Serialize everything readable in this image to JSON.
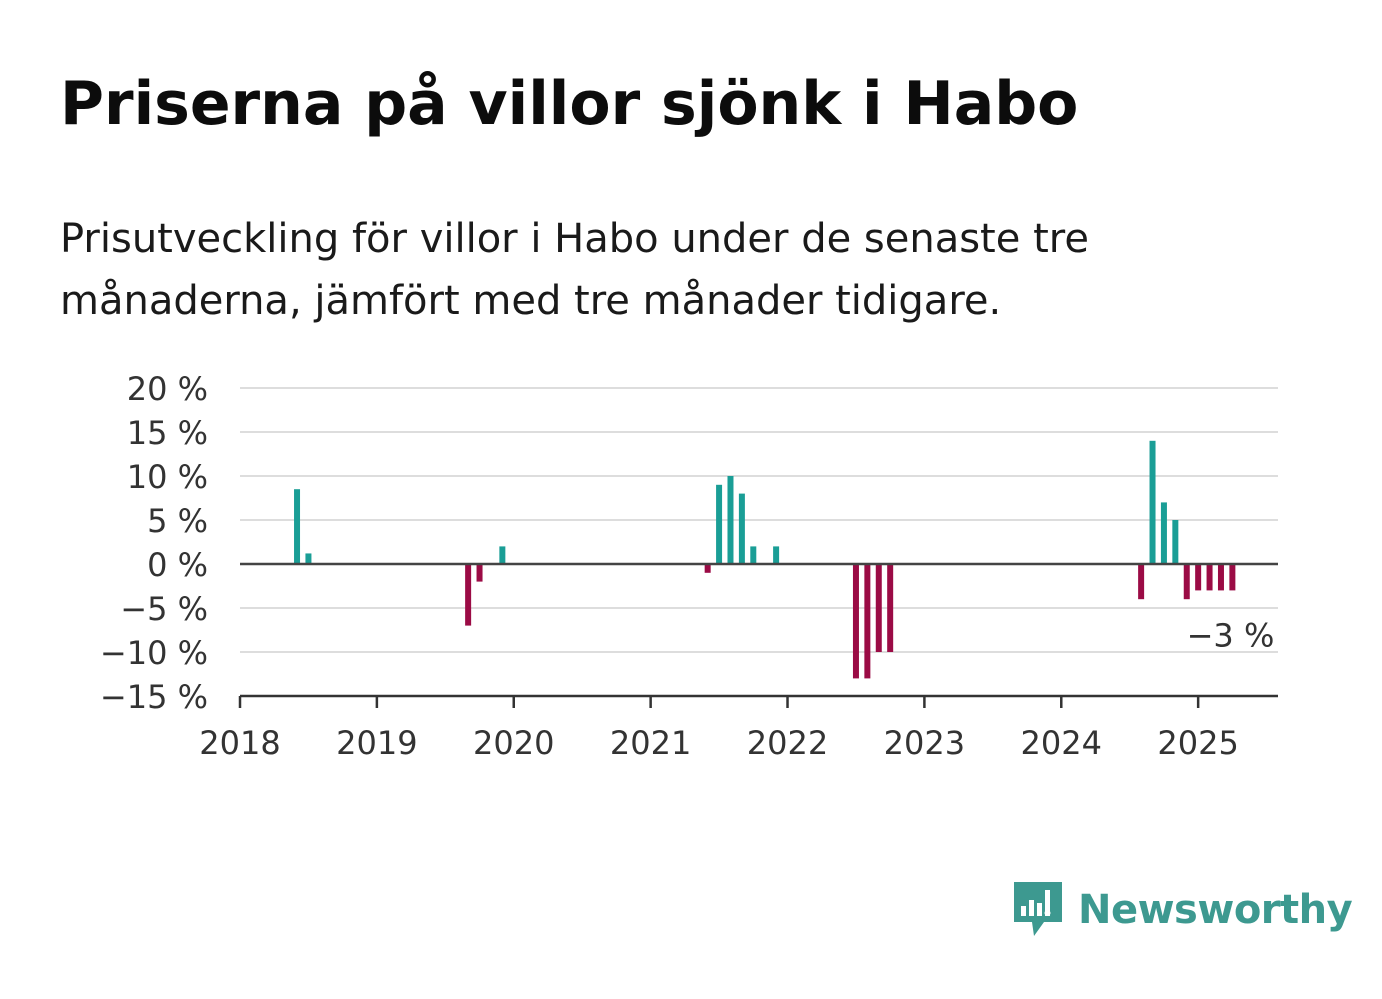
{
  "title": "Priserna på villor sjönk i Habo",
  "subtitle": "Prisutveckling för villor i Habo under de senaste tre månaderna, jämfört med tre månader tidigare.",
  "brand": {
    "name": "Newsworthy",
    "color": "#3d9990"
  },
  "colors": {
    "positive": "#1a9e96",
    "negative": "#9b0b45",
    "grid": "#dddddd",
    "axis": "#333333"
  },
  "chart_data": {
    "type": "bar",
    "title": "Priserna på villor sjönk i Habo",
    "subtitle": "Prisutveckling för villor i Habo under de senaste tre månaderna, jämfört med tre månader tidigare.",
    "xlabel": "",
    "ylabel": "",
    "ylim": [
      -15,
      20
    ],
    "xlim": [
      "2018-01",
      "2025-08"
    ],
    "grid": true,
    "legend": "none",
    "yticks": [
      {
        "value": 20,
        "label": "20 %"
      },
      {
        "value": 15,
        "label": "15 %"
      },
      {
        "value": 10,
        "label": "10 %"
      },
      {
        "value": 5,
        "label": "5 %"
      },
      {
        "value": 0,
        "label": "0 %"
      },
      {
        "value": -5,
        "label": "−5 %"
      },
      {
        "value": -10,
        "label": "−10 %"
      },
      {
        "value": -15,
        "label": "−15 %"
      }
    ],
    "xticks": [
      {
        "value": "2018-01",
        "label": "2018"
      },
      {
        "value": "2019-01",
        "label": "2019"
      },
      {
        "value": "2020-01",
        "label": "2020"
      },
      {
        "value": "2021-01",
        "label": "2021"
      },
      {
        "value": "2022-01",
        "label": "2022"
      },
      {
        "value": "2023-01",
        "label": "2023"
      },
      {
        "value": "2024-01",
        "label": "2024"
      },
      {
        "value": "2025-01",
        "label": "2025"
      }
    ],
    "points": [
      {
        "x": "2018-06",
        "y": 8.5
      },
      {
        "x": "2018-07",
        "y": 1.2
      },
      {
        "x": "2019-09",
        "y": -7
      },
      {
        "x": "2019-10",
        "y": -2
      },
      {
        "x": "2019-12",
        "y": 2
      },
      {
        "x": "2021-06",
        "y": -1
      },
      {
        "x": "2021-07",
        "y": 9
      },
      {
        "x": "2021-08",
        "y": 10
      },
      {
        "x": "2021-09",
        "y": 8
      },
      {
        "x": "2021-10",
        "y": 2
      },
      {
        "x": "2021-12",
        "y": 2
      },
      {
        "x": "2022-07",
        "y": -13
      },
      {
        "x": "2022-08",
        "y": -13
      },
      {
        "x": "2022-09",
        "y": -10
      },
      {
        "x": "2022-10",
        "y": -10
      },
      {
        "x": "2024-08",
        "y": -4
      },
      {
        "x": "2024-09",
        "y": 14
      },
      {
        "x": "2024-10",
        "y": 7
      },
      {
        "x": "2024-11",
        "y": 5
      },
      {
        "x": "2024-12",
        "y": -4
      },
      {
        "x": "2025-01",
        "y": -3
      },
      {
        "x": "2025-02",
        "y": -3
      },
      {
        "x": "2025-03",
        "y": -3
      },
      {
        "x": "2025-04",
        "y": -3
      }
    ],
    "annotation": {
      "x": "2025-04",
      "y": -3,
      "label": "−3 %"
    }
  }
}
